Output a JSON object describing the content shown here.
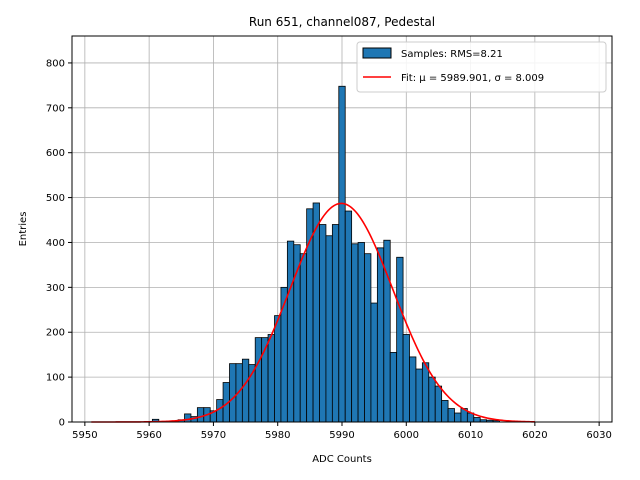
{
  "chart_data": {
    "type": "bar",
    "title": "Run 651, channel087, Pedestal",
    "xlabel": "ADC Counts",
    "ylabel": "Entries",
    "xlim": [
      5948,
      6032
    ],
    "ylim": [
      0,
      860
    ],
    "xticks": [
      5950,
      5960,
      5970,
      5980,
      5990,
      6000,
      6010,
      6020,
      6030
    ],
    "yticks": [
      0,
      100,
      200,
      300,
      400,
      500,
      600,
      700,
      800
    ],
    "grid": true,
    "legend_position": "top-right",
    "bar_width": 1,
    "colors": {
      "bars": "#1f77b4",
      "bar_edge": "#000000",
      "fit": "#ff0000",
      "grid": "#b0b0b0"
    },
    "series": [
      {
        "name": "Samples: RMS=8.21",
        "type": "histogram",
        "bin_centers": [
          5961,
          5962,
          5963,
          5964,
          5965,
          5966,
          5967,
          5968,
          5969,
          5970,
          5971,
          5972,
          5973,
          5974,
          5975,
          5976,
          5977,
          5978,
          5979,
          5980,
          5981,
          5982,
          5983,
          5984,
          5985,
          5986,
          5987,
          5988,
          5989,
          5990,
          5991,
          5992,
          5993,
          5994,
          5995,
          5996,
          5997,
          5998,
          5999,
          6000,
          6001,
          6002,
          6003,
          6004,
          6005,
          6006,
          6007,
          6008,
          6009,
          6010,
          6011,
          6012,
          6013,
          6014
        ],
        "counts": [
          6,
          0,
          0,
          0,
          5,
          18,
          12,
          32,
          32,
          25,
          50,
          88,
          130,
          130,
          140,
          128,
          188,
          188,
          195,
          237,
          300,
          403,
          395,
          375,
          475,
          488,
          440,
          415,
          440,
          748,
          470,
          397,
          400,
          375,
          265,
          388,
          405,
          155,
          367,
          195,
          145,
          118,
          132,
          100,
          80,
          48,
          30,
          20,
          30,
          20,
          10,
          5,
          4,
          3
        ]
      },
      {
        "name": "Fit: μ = 5989.901, σ = 8.009",
        "type": "gaussian_fit",
        "mu": 5989.901,
        "sigma": 8.009,
        "amplitude": 487,
        "x_range": [
          5951,
          6020
        ]
      }
    ],
    "legend": [
      {
        "label": "Samples: RMS=8.21",
        "symbol": "patch"
      },
      {
        "label": "Fit: $\\mu$ = 5989.901, $\\sigma$ = 8.009",
        "display": "Fit: μ = 5989.901, σ = 8.009",
        "symbol": "line"
      }
    ]
  }
}
